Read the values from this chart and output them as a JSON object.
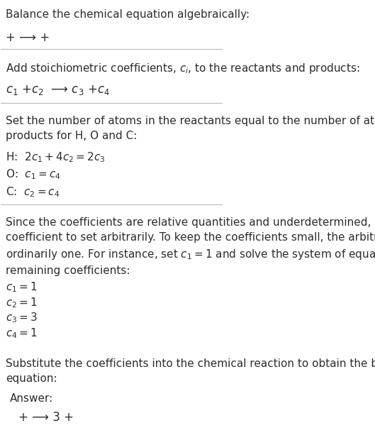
{
  "title": "Balance the chemical equation algebraically:",
  "line1": "+ ⟶ +",
  "section2_title": "Add stoichiometric coefficients, $c_i$, to the reactants and products:",
  "line2": "$c_1$ +$c_2$  ⟶ $c_3$ +$c_4$",
  "section3_title": "Set the number of atoms in the reactants equal to the number of atoms in the\nproducts for H, O and C:",
  "eq_H": "H:  $2 c_1 + 4 c_2 = 2 c_3$",
  "eq_O": "O:  $c_1 = c_4$",
  "eq_C": "C:  $c_2 = c_4$",
  "section4_body": "Since the coefficients are relative quantities and underdetermined, choose a\ncoefficient to set arbitrarily. To keep the coefficients small, the arbitrary value is\nordinarily one. For instance, set $c_1 = 1$ and solve the system of equations for the\nremaining coefficients:",
  "coeff1": "$c_1 = 1$",
  "coeff2": "$c_2 = 1$",
  "coeff3": "$c_3 = 3$",
  "coeff4": "$c_4 = 1$",
  "section5_title": "Substitute the coefficients into the chemical reaction to obtain the balanced\nequation:",
  "answer_label": "Answer:",
  "answer_line": "+ ⟶ 3 +",
  "bg_color": "#ffffff",
  "text_color": "#2d2d2d",
  "line_color": "#bbbbbb",
  "answer_box_bg": "#e8f4f8",
  "answer_box_border": "#5bb8d4",
  "font_size": 11,
  "small_font": 10
}
